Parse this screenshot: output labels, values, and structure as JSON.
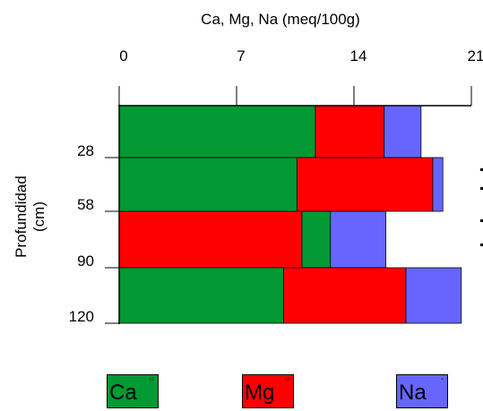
{
  "chart_data": {
    "type": "bar",
    "orientation": "horizontal",
    "stacked": true,
    "title": "Ca, Mg, Na (meq/100g)",
    "ylabel": "Profundidad\n(cm)",
    "xlim": [
      0,
      21
    ],
    "x_ticks": [
      "0",
      "7",
      "14",
      "21"
    ],
    "depth_ticks": [
      "28",
      "58",
      "90",
      "120"
    ],
    "layers": [
      {
        "segments": [
          {
            "element": "Ca",
            "value": 11.7
          },
          {
            "element": "Mg",
            "value": 4.1
          },
          {
            "element": "Na",
            "value": 2.2
          }
        ]
      },
      {
        "segments": [
          {
            "element": "Ca",
            "value": 10.6
          },
          {
            "element": "Mg",
            "value": 8.1
          },
          {
            "element": "Na",
            "value": 0.6
          }
        ]
      },
      {
        "segments": [
          {
            "element": "Mg",
            "value": 10.9
          },
          {
            "element": "Ca",
            "value": 1.7
          },
          {
            "element": "Na",
            "value": 3.3
          }
        ]
      },
      {
        "segments": [
          {
            "element": "Ca",
            "value": 9.8
          },
          {
            "element": "Mg",
            "value": 7.3
          },
          {
            "element": "Na",
            "value": 3.3
          }
        ]
      }
    ],
    "grid": false,
    "legend_position": "bottom"
  },
  "legend": [
    {
      "element": "Ca",
      "label": "Ca",
      "superscript": "+2"
    },
    {
      "element": "Mg",
      "label": "Mg",
      "superscript": "+2"
    },
    {
      "element": "Na",
      "label": "Na",
      "superscript": "+"
    }
  ],
  "colors": {
    "Ca": "#009933",
    "Mg": "#ff0000",
    "Na": "#6666ff",
    "axis": "#000000"
  }
}
